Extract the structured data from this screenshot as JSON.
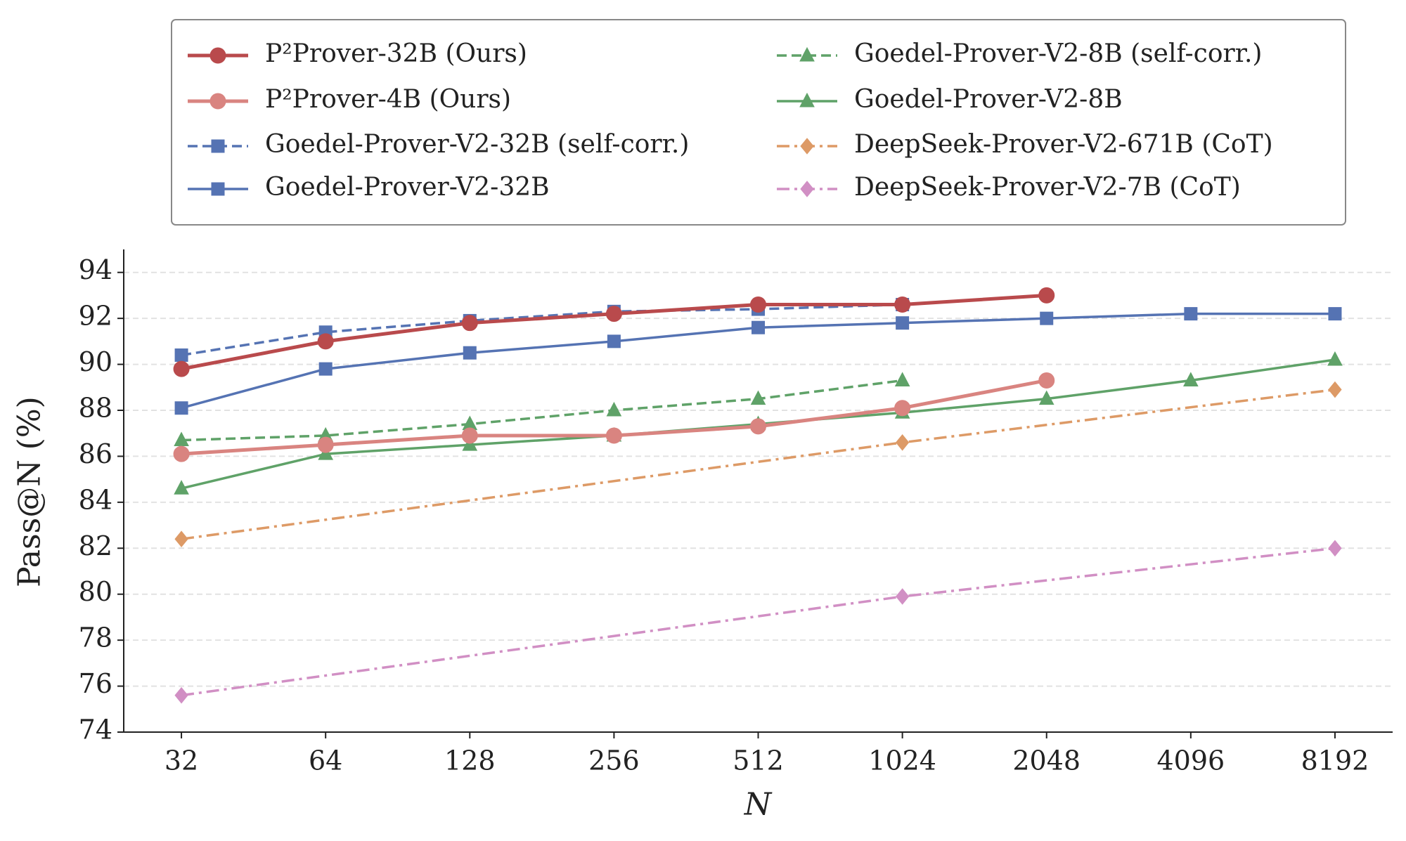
{
  "chart_data": {
    "type": "line",
    "x_label": "N",
    "y_label": "Pass@N (%)",
    "xscale": "log",
    "xlim": [
      24.25,
      10809
    ],
    "xticks": [
      32,
      64,
      128,
      256,
      512,
      1024,
      2048,
      4096,
      8192
    ],
    "ylim": [
      74,
      95
    ],
    "yticks": [
      74,
      76,
      78,
      80,
      82,
      84,
      86,
      88,
      90,
      92,
      94
    ],
    "grid": true,
    "legend": "upper center",
    "series": [
      {
        "name": "P²Prover-32B (Ours)",
        "color": "#b94a4c",
        "linestyle": "solid",
        "marker": "circle",
        "linewidth": 5,
        "x": [
          32,
          64,
          128,
          256,
          512,
          1024,
          2048
        ],
        "values": [
          89.8,
          91.0,
          91.8,
          92.2,
          92.6,
          92.6,
          93.0
        ]
      },
      {
        "name": "P²Prover-4B (Ours)",
        "color": "#d98480",
        "linestyle": "solid",
        "marker": "circle",
        "linewidth": 5,
        "x": [
          32,
          64,
          128,
          256,
          512,
          1024,
          2048
        ],
        "values": [
          86.1,
          86.5,
          86.9,
          86.9,
          87.3,
          88.1,
          89.3
        ]
      },
      {
        "name": "Goedel-Prover-V2-32B (self-corr.)",
        "color": "#5573b3",
        "linestyle": "dashed",
        "marker": "square",
        "linewidth": 3.5,
        "x": [
          32,
          64,
          128,
          256,
          512,
          1024
        ],
        "values": [
          90.4,
          91.4,
          91.9,
          92.3,
          92.4,
          92.6
        ]
      },
      {
        "name": "Goedel-Prover-V2-32B",
        "color": "#5573b3",
        "linestyle": "solid",
        "marker": "square",
        "linewidth": 3.5,
        "x": [
          32,
          64,
          128,
          256,
          512,
          1024,
          2048,
          4096,
          8192
        ],
        "values": [
          88.1,
          89.8,
          90.5,
          91.0,
          91.6,
          91.8,
          92.0,
          92.2,
          92.2
        ]
      },
      {
        "name": "Goedel-Prover-V2-8B (self-corr.)",
        "color": "#5fa268",
        "linestyle": "dashed",
        "marker": "triangle",
        "linewidth": 3.5,
        "x": [
          32,
          64,
          128,
          256,
          512,
          1024
        ],
        "values": [
          86.7,
          86.9,
          87.4,
          88.0,
          88.5,
          89.3
        ]
      },
      {
        "name": "Goedel-Prover-V2-8B",
        "color": "#5fa268",
        "linestyle": "solid",
        "marker": "triangle",
        "linewidth": 3.5,
        "x": [
          32,
          64,
          128,
          256,
          512,
          1024,
          2048,
          4096,
          8192
        ],
        "values": [
          84.6,
          86.1,
          86.5,
          86.9,
          87.4,
          87.9,
          88.5,
          89.3,
          90.2
        ]
      },
      {
        "name": "DeepSeek-Prover-V2-671B (CoT)",
        "color": "#dd9a66",
        "linestyle": "dashdot",
        "marker": "diamond",
        "linewidth": 3.5,
        "x": [
          32,
          1024,
          8192
        ],
        "values": [
          82.4,
          86.6,
          88.9
        ]
      },
      {
        "name": "DeepSeek-Prover-V2-7B (CoT)",
        "color": "#d18fc4",
        "linestyle": "dashdot",
        "marker": "diamond",
        "linewidth": 3.5,
        "x": [
          32,
          1024,
          8192
        ],
        "values": [
          75.6,
          79.9,
          82.0
        ]
      }
    ]
  }
}
